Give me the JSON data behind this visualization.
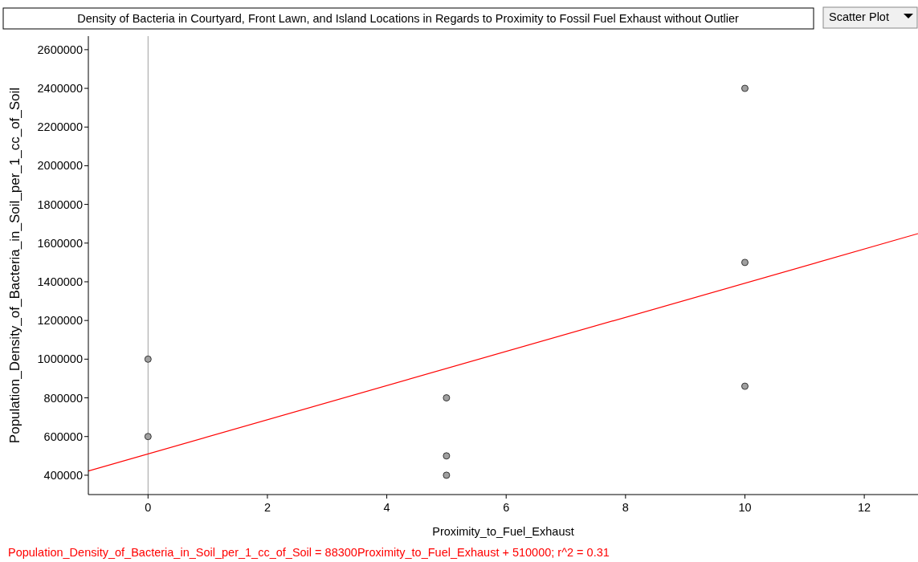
{
  "chart_data": {
    "type": "scatter",
    "title": "Density of Bacteria in Courtyard, Front Lawn, and Island Locations in Regards to Proximity to Fossil Fuel Exhaust without Outlier",
    "xlabel": "Proximity_to_Fuel_Exhaust",
    "ylabel": "Population_Density_of_Bacteria_in_Soil_per_1_cc_of_Soil",
    "annotations": [
      "Scatter Plot",
      "Population_Density_of_Bacteria_in_Soil_per_1_cc_of_Soil = 88300Proximity_to_Fuel_Exhaust + 510000; r^2 = 0.31"
    ],
    "series": [
      {
        "color": "#a0a0a0",
        "marker": "circle",
        "x": [
          0,
          0,
          5,
          5,
          5,
          10,
          10,
          10
        ],
        "values": [
          1000000,
          600000,
          800000,
          500000,
          400000,
          2400000,
          1500000,
          860000
        ]
      },
      {
        "type": "line",
        "color": "#ff0000",
        "x": [
          -1,
          12.9
        ],
        "values": [
          422000,
          1649000
        ]
      }
    ],
    "xlim": [
      -1,
      12.9
    ],
    "ylim": [
      300000,
      2670000
    ],
    "xticks": [
      0,
      2,
      4,
      6,
      8,
      10,
      12
    ],
    "yticks": [
      400000,
      600000,
      800000,
      1000000,
      1200000,
      1400000,
      1600000,
      1800000,
      2000000,
      2200000,
      2400000,
      2600000
    ],
    "ref_lines": [
      {
        "axis": "x",
        "value": 0,
        "color": "#a0a0a0"
      }
    ],
    "grid": false,
    "line_style": "solid"
  }
}
